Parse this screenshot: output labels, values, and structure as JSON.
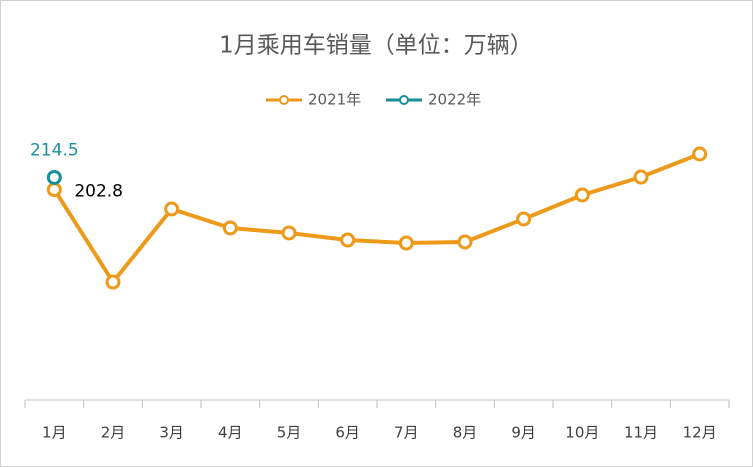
{
  "chart_data": {
    "type": "line",
    "title": "1月乘用车销量（单位：万辆）",
    "categories": [
      "1月",
      "2月",
      "3月",
      "4月",
      "5月",
      "6月",
      "7月",
      "8月",
      "9月",
      "10月",
      "11月",
      "12月"
    ],
    "series": [
      {
        "name": "2021年",
        "color": "#ed9a1b",
        "values": [
          202.8,
          113.7,
          184.1,
          165.8,
          161.0,
          154.2,
          151.3,
          152.3,
          174.5,
          197.6,
          214.9,
          237.1
        ]
      },
      {
        "name": "2022年",
        "color": "#1a8f9a",
        "values": [
          214.5,
          null,
          null,
          null,
          null,
          null,
          null,
          null,
          null,
          null,
          null,
          null
        ]
      }
    ],
    "ylim": [
      0,
      240
    ],
    "legend": "top"
  }
}
